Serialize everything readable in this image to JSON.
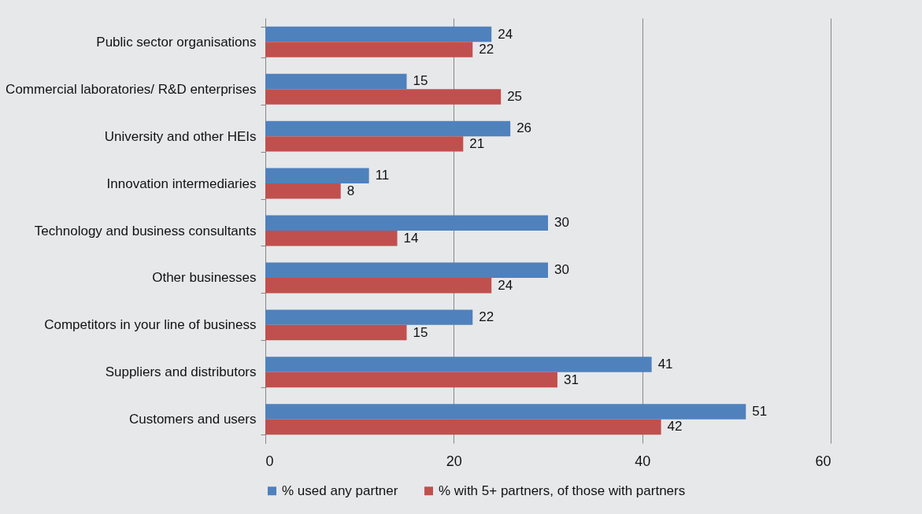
{
  "chart_data": {
    "type": "bar",
    "orientation": "horizontal",
    "categories": [
      "Public sector organisations",
      "Commercial laboratories/ R&D enterprises",
      "University and other HEIs",
      "Innovation intermediaries",
      "Technology and business consultants",
      "Other businesses",
      "Competitors in your line of business",
      "Suppliers and distributors",
      "Customers and users"
    ],
    "series": [
      {
        "name": "% used any partner",
        "color": "#4f81bd",
        "values": [
          24,
          15,
          26,
          11,
          30,
          30,
          22,
          41,
          51
        ]
      },
      {
        "name": "% with 5+ partners, of those with partners",
        "color": "#c0504d",
        "values": [
          22,
          25,
          21,
          8,
          14,
          24,
          15,
          31,
          42
        ]
      }
    ],
    "xlim": [
      0,
      60
    ],
    "xticks": [
      0,
      20,
      40,
      60
    ],
    "grid": "x",
    "legend": "bottom",
    "data_labels": true
  }
}
